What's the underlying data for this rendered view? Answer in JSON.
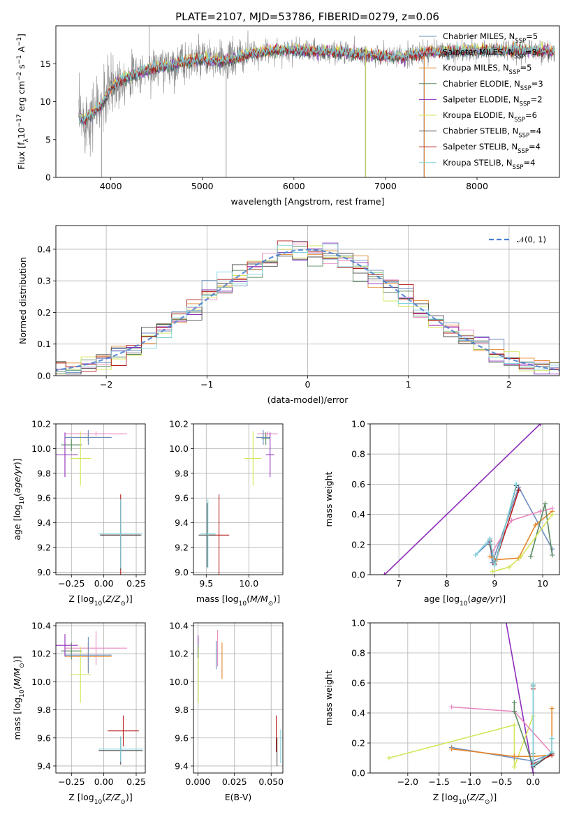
{
  "title": "PLATE=2107, MJD=53786, FIBERID=0279, z=0.06",
  "colors": {
    "Chabrier MILES": "#6c8ebf",
    "Salpeter MILES": "#e98ac0",
    "Kroupa MILES": "#e5862c",
    "Chabrier ELODIE": "#5b8a62",
    "Salpeter ELODIE": "#8e2dbb",
    "Kroupa ELODIE": "#d4e55a",
    "Chabrier STELIB": "#4d4d4d",
    "Salpeter STELIB": "#b51d1d",
    "Kroupa STELIB": "#7fd3db",
    "data": "#8a8a8a",
    "normal": "#4a7fd0"
  },
  "chart_data": [
    {
      "id": "spectrum",
      "type": "line",
      "xlabel": "wavelength [Angstrom, rest frame]",
      "ylabel": "Flux [f_λ 10^-17 erg cm^-2 s^-1 A^-1]",
      "xlim": [
        3400,
        8900
      ],
      "ylim": [
        0,
        20
      ],
      "xticks": [
        4000,
        5000,
        6000,
        7000,
        8000
      ],
      "yticks": [
        0,
        5,
        10,
        15
      ],
      "grid": false,
      "legend_position": "right",
      "legend": [
        {
          "model": "Chabrier MILES",
          "label": "Chabrier MILES, N",
          "nssp": "=5"
        },
        {
          "model": "Salpeter MILES",
          "label": "Salpeter MILES, N",
          "nssp": "=3"
        },
        {
          "model": "Kroupa MILES",
          "label": "Kroupa MILES, N",
          "nssp": "=5"
        },
        {
          "model": "Chabrier ELODIE",
          "label": "Chabrier ELODIE, N",
          "nssp": "=3"
        },
        {
          "model": "Salpeter ELODIE",
          "label": "Salpeter ELODIE, N",
          "nssp": "=2"
        },
        {
          "model": "Kroupa ELODIE",
          "label": "Kroupa ELODIE, N",
          "nssp": "=6"
        },
        {
          "model": "Chabrier STELIB",
          "label": "Chabrier STELIB, N",
          "nssp": "=4"
        },
        {
          "model": "Salpeter STELIB",
          "label": "Salpeter STELIB, N",
          "nssp": "=4"
        },
        {
          "model": "Kroupa STELIB",
          "label": "Kroupa STELIB, N",
          "nssp": "=4"
        }
      ],
      "continuum": [
        [
          3650,
          8.0
        ],
        [
          3700,
          7.5
        ],
        [
          3800,
          8.5
        ],
        [
          3900,
          9.5
        ],
        [
          4000,
          11.8
        ],
        [
          4100,
          12.8
        ],
        [
          4300,
          13.8
        ],
        [
          4500,
          14.5
        ],
        [
          4800,
          15.2
        ],
        [
          5000,
          15.6
        ],
        [
          5200,
          15.2
        ],
        [
          5500,
          16.2
        ],
        [
          5800,
          16.8
        ],
        [
          6000,
          16.8
        ],
        [
          6200,
          16.6
        ],
        [
          6500,
          16.5
        ],
        [
          7000,
          16.0
        ],
        [
          7200,
          15.8
        ],
        [
          7400,
          16.5
        ],
        [
          8000,
          16.7
        ],
        [
          8500,
          16.8
        ],
        [
          8850,
          16.6
        ]
      ],
      "spikes": [
        [
          3900,
          0
        ],
        [
          4420,
          20
        ],
        [
          5260,
          0
        ],
        [
          6780,
          0
        ],
        [
          7420,
          0
        ]
      ]
    },
    {
      "id": "residuals",
      "type": "line",
      "xlabel": "(data-model)/error",
      "ylabel": "Normed distribution",
      "xlim": [
        -2.5,
        2.5
      ],
      "ylim": [
        0,
        0.475
      ],
      "xticks": [
        -2,
        -1,
        0,
        1,
        2
      ],
      "xticklabels": [
        "−2",
        "−1",
        "0",
        "1",
        "2"
      ],
      "yticks": [
        0.0,
        0.1,
        0.2,
        0.3,
        0.4
      ],
      "grid": true,
      "legend_position": "top-right",
      "legend_label": "𝒩(0, 1)"
    },
    {
      "id": "age-vs-Z",
      "type": "scatter",
      "xlabel": "Z [log10(Z/Z⊙)]",
      "ylabel": "age [log10(age/yr)]",
      "xlim": [
        -0.37,
        0.32
      ],
      "ylim": [
        8.98,
        10.2
      ],
      "xticks": [
        -0.25,
        0.0,
        0.25
      ],
      "xticklabels": [
        "−0.25",
        "0.00",
        "0.25"
      ],
      "yticks": [
        9.0,
        9.2,
        9.4,
        9.6,
        9.8,
        10.0,
        10.2
      ],
      "grid": true,
      "points": [
        {
          "model": "Salpeter MILES",
          "x": -0.06,
          "y": 10.12,
          "xerr": 0.24,
          "yerr": 0.02
        },
        {
          "model": "Kroupa MILES",
          "x": -0.12,
          "y": 10.09,
          "xerr": 0.18,
          "yerr": 0.03
        },
        {
          "model": "Chabrier ELODIE",
          "x": -0.25,
          "y": 10.03,
          "xerr": 0.08,
          "yerr": 0.05
        },
        {
          "model": "Salpeter ELODIE",
          "x": -0.3,
          "y": 9.95,
          "xerr": 0.1,
          "yerr": 0.18
        },
        {
          "model": "Kroupa ELODIE",
          "x": -0.18,
          "y": 9.92,
          "xerr": 0.08,
          "yerr": 0.22
        },
        {
          "model": "Chabrier MILES",
          "x": -0.12,
          "y": 10.09,
          "xerr": 0.18,
          "yerr": 0.06
        },
        {
          "model": "Salpeter STELIB",
          "x": 0.13,
          "y": 9.3,
          "xerr": 0.15,
          "yerr": 0.33
        },
        {
          "model": "Chabrier STELIB",
          "x": 0.13,
          "y": 9.3,
          "xerr": 0.16,
          "yerr": 0.28
        },
        {
          "model": "Kroupa STELIB",
          "x": 0.13,
          "y": 9.31,
          "xerr": 0.17,
          "yerr": 0.28
        }
      ]
    },
    {
      "id": "age-vs-mass",
      "type": "scatter",
      "xlabel": "mass [log10(M/M⊙)]",
      "ylabel": "",
      "xlim": [
        9.35,
        10.4
      ],
      "ylim": [
        8.98,
        10.2
      ],
      "xticks": [
        9.5,
        10.0
      ],
      "xticklabels": [
        "9.5",
        "10.0"
      ],
      "yticks": [
        9.0,
        9.2,
        9.4,
        9.6,
        9.8,
        10.0,
        10.2
      ],
      "grid": true,
      "points": [
        {
          "model": "Salpeter MILES",
          "x": 10.22,
          "y": 10.12,
          "xerr": 0.12,
          "yerr": 0.02
        },
        {
          "model": "Kroupa MILES",
          "x": 10.17,
          "y": 10.09,
          "xerr": 0.08,
          "yerr": 0.04
        },
        {
          "model": "Chabrier ELODIE",
          "x": 10.2,
          "y": 10.08,
          "xerr": 0.05,
          "yerr": 0.05
        },
        {
          "model": "Salpeter ELODIE",
          "x": 10.25,
          "y": 9.95,
          "xerr": 0.05,
          "yerr": 0.18
        },
        {
          "model": "Kroupa ELODIE",
          "x": 10.05,
          "y": 9.92,
          "xerr": 0.1,
          "yerr": 0.22
        },
        {
          "model": "Chabrier MILES",
          "x": 10.17,
          "y": 10.09,
          "xerr": 0.08,
          "yerr": 0.06
        },
        {
          "model": "Salpeter STELIB",
          "x": 9.65,
          "y": 9.3,
          "xerr": 0.12,
          "yerr": 0.33
        },
        {
          "model": "Chabrier STELIB",
          "x": 9.51,
          "y": 9.3,
          "xerr": 0.1,
          "yerr": 0.26
        },
        {
          "model": "Kroupa STELIB",
          "x": 9.52,
          "y": 9.31,
          "xerr": 0.09,
          "yerr": 0.28
        }
      ]
    },
    {
      "id": "mass-weight-vs-age",
      "type": "line",
      "xlabel": "age [log10(age/yr)]",
      "ylabel": "mass weight",
      "xlim": [
        6.4,
        10.35
      ],
      "ylim": [
        0,
        1.0
      ],
      "xticks": [
        7,
        8,
        9,
        10
      ],
      "yticks": [
        0.0,
        0.2,
        0.4,
        0.6,
        0.8,
        1.0
      ],
      "grid": true,
      "series": [
        {
          "model": "Salpeter ELODIE",
          "x": [
            6.7,
            9.95
          ],
          "y": [
            0.0,
            1.0
          ]
        },
        {
          "model": "Chabrier MILES",
          "x": [
            8.6,
            8.9,
            8.95,
            9.5,
            10.2
          ],
          "y": [
            0.13,
            0.22,
            0.08,
            0.58,
            0.17
          ]
        },
        {
          "model": "Kroupa MILES",
          "x": [
            8.9,
            9.05,
            9.5,
            9.85,
            10.2
          ],
          "y": [
            0.12,
            0.1,
            0.11,
            0.33,
            0.42
          ]
        },
        {
          "model": "Salpeter MILES",
          "x": [
            8.95,
            9.35,
            9.95,
            10.2
          ],
          "y": [
            0.15,
            0.36,
            0.42,
            0.44
          ]
        },
        {
          "model": "Chabrier ELODIE",
          "x": [
            9.75,
            10.05,
            10.2
          ],
          "y": [
            0.12,
            0.47,
            0.13
          ]
        },
        {
          "model": "Kroupa ELODIE",
          "x": [
            8.95,
            9.3,
            9.55,
            10.2
          ],
          "y": [
            0.02,
            0.05,
            0.12,
            0.4
          ]
        },
        {
          "model": "Chabrier STELIB",
          "x": [
            8.9,
            9.0,
            9.45
          ],
          "y": [
            0.2,
            0.07,
            0.59
          ]
        },
        {
          "model": "Salpeter STELIB",
          "x": [
            8.9,
            9.0,
            9.5
          ],
          "y": [
            0.23,
            0.07,
            0.56
          ]
        },
        {
          "model": "Kroupa STELIB",
          "x": [
            8.6,
            8.9,
            9.0,
            9.45
          ],
          "y": [
            0.13,
            0.24,
            0.06,
            0.6
          ]
        }
      ]
    },
    {
      "id": "mass-vs-Z",
      "type": "scatter",
      "xlabel": "Z [log10(Z/Z⊙)]",
      "ylabel": "mass [log10(M/M⊙)]",
      "xlim": [
        -0.37,
        0.32
      ],
      "ylim": [
        9.35,
        10.42
      ],
      "xticks": [
        -0.25,
        0.0,
        0.25
      ],
      "xticklabels": [
        "−0.25",
        "0.00",
        "0.25"
      ],
      "yticks": [
        9.4,
        9.6,
        9.8,
        10.0,
        10.2,
        10.4
      ],
      "grid": true,
      "points": [
        {
          "model": "Salpeter MILES",
          "x": -0.06,
          "y": 10.24,
          "xerr": 0.24,
          "yerr": 0.12
        },
        {
          "model": "Kroupa MILES",
          "x": -0.12,
          "y": 10.18,
          "xerr": 0.18,
          "yerr": 0.1
        },
        {
          "model": "Chabrier ELODIE",
          "x": -0.25,
          "y": 10.22,
          "xerr": 0.08,
          "yerr": 0.06
        },
        {
          "model": "Salpeter ELODIE",
          "x": -0.3,
          "y": 10.26,
          "xerr": 0.1,
          "yerr": 0.08
        },
        {
          "model": "Kroupa ELODIE",
          "x": -0.18,
          "y": 10.05,
          "xerr": 0.08,
          "yerr": 0.2
        },
        {
          "model": "Chabrier MILES",
          "x": -0.12,
          "y": 10.19,
          "xerr": 0.18,
          "yerr": 0.13
        },
        {
          "model": "Salpeter STELIB",
          "x": 0.15,
          "y": 9.65,
          "xerr": 0.12,
          "yerr": 0.11
        },
        {
          "model": "Chabrier STELIB",
          "x": 0.13,
          "y": 9.51,
          "xerr": 0.17,
          "yerr": 0.1
        },
        {
          "model": "Kroupa STELIB",
          "x": 0.13,
          "y": 9.52,
          "xerr": 0.17,
          "yerr": 0.09
        }
      ]
    },
    {
      "id": "mass-vs-ebv",
      "type": "scatter",
      "xlabel": "E(B-V)",
      "ylabel": "",
      "xlim": [
        -0.003,
        0.058
      ],
      "ylim": [
        9.35,
        10.42
      ],
      "xticks": [
        0.0,
        0.025,
        0.05
      ],
      "xticklabels": [
        "0.000",
        "0.025",
        "0.050"
      ],
      "yticks": [
        9.4,
        9.6,
        9.8,
        10.0,
        10.2,
        10.4
      ],
      "grid": true,
      "points": [
        {
          "model": "Salpeter MILES",
          "x": 0.0135,
          "y": 10.24,
          "xerr": 0,
          "yerr": 0.13
        },
        {
          "model": "Kroupa MILES",
          "x": 0.0165,
          "y": 10.15,
          "xerr": 0,
          "yerr": 0.13
        },
        {
          "model": "Chabrier MILES",
          "x": 0.0125,
          "y": 10.19,
          "xerr": 0,
          "yerr": 0.1
        },
        {
          "model": "Salpeter ELODIE",
          "x": 0.0002,
          "y": 10.25,
          "xerr": 0,
          "yerr": 0.08
        },
        {
          "model": "Kroupa ELODIE",
          "x": 0.0003,
          "y": 10.05,
          "xerr": 0,
          "yerr": 0.2
        },
        {
          "model": "Chabrier ELODIE",
          "x": 0.0001,
          "y": 10.22,
          "xerr": 0,
          "yerr": 0.05
        },
        {
          "model": "Salpeter STELIB",
          "x": 0.0535,
          "y": 9.63,
          "xerr": 0,
          "yerr": 0.13
        },
        {
          "model": "Chabrier STELIB",
          "x": 0.054,
          "y": 9.5,
          "xerr": 0,
          "yerr": 0.1
        },
        {
          "model": "Kroupa STELIB",
          "x": 0.0565,
          "y": 9.54,
          "xerr": 0,
          "yerr": 0.12
        }
      ]
    },
    {
      "id": "mass-weight-vs-Z",
      "type": "line",
      "xlabel": "Z [log10(Z/Z⊙)]",
      "ylabel": "mass weight",
      "xlim": [
        -2.6,
        0.42
      ],
      "ylim": [
        0,
        1.0
      ],
      "xticks": [
        -2.0,
        -1.5,
        -1.0,
        -0.5,
        0.0
      ],
      "xticklabels": [
        "−2.0",
        "−1.5",
        "−1.0",
        "−0.5",
        "0.0"
      ],
      "yticks": [
        0.0,
        0.2,
        0.4,
        0.6,
        0.8,
        1.0
      ],
      "grid": true,
      "series": [
        {
          "model": "Salpeter ELODIE",
          "x": [
            -0.45,
            0.0
          ],
          "y": [
            1.05,
            0.0
          ]
        },
        {
          "model": "Kroupa ELODIE",
          "x": [
            -2.3,
            -0.3,
            -0.3,
            0.0
          ],
          "y": [
            0.1,
            0.32,
            0.04,
            0.38
          ]
        },
        {
          "model": "Salpeter MILES",
          "x": [
            -1.3,
            -0.3,
            0.3
          ],
          "y": [
            0.44,
            0.41,
            0.13
          ]
        },
        {
          "model": "Chabrier MILES",
          "x": [
            -1.3,
            -0.3,
            0.0,
            0.3
          ],
          "y": [
            0.17,
            0.1,
            0.08,
            0.13
          ]
        },
        {
          "model": "Kroupa MILES",
          "x": [
            -1.3,
            -0.3,
            0.0,
            0.3,
            0.3
          ],
          "y": [
            0.16,
            0.11,
            0.11,
            0.12,
            0.43
          ]
        },
        {
          "model": "Chabrier ELODIE",
          "x": [
            -0.3,
            -0.3,
            0.0,
            0.0
          ],
          "y": [
            0.47,
            0.41,
            0.05,
            0.13
          ]
        },
        {
          "model": "Chabrier STELIB",
          "x": [
            0.0,
            0.0,
            0.3,
            0.3
          ],
          "y": [
            0.58,
            0.04,
            0.13,
            0.23
          ]
        },
        {
          "model": "Salpeter STELIB",
          "x": [
            0.0,
            0.0,
            0.3
          ],
          "y": [
            0.56,
            0.06,
            0.12
          ]
        },
        {
          "model": "Kroupa STELIB",
          "x": [
            0.0,
            0.0,
            0.3,
            0.3
          ],
          "y": [
            0.59,
            0.05,
            0.14,
            0.23
          ]
        }
      ]
    }
  ]
}
